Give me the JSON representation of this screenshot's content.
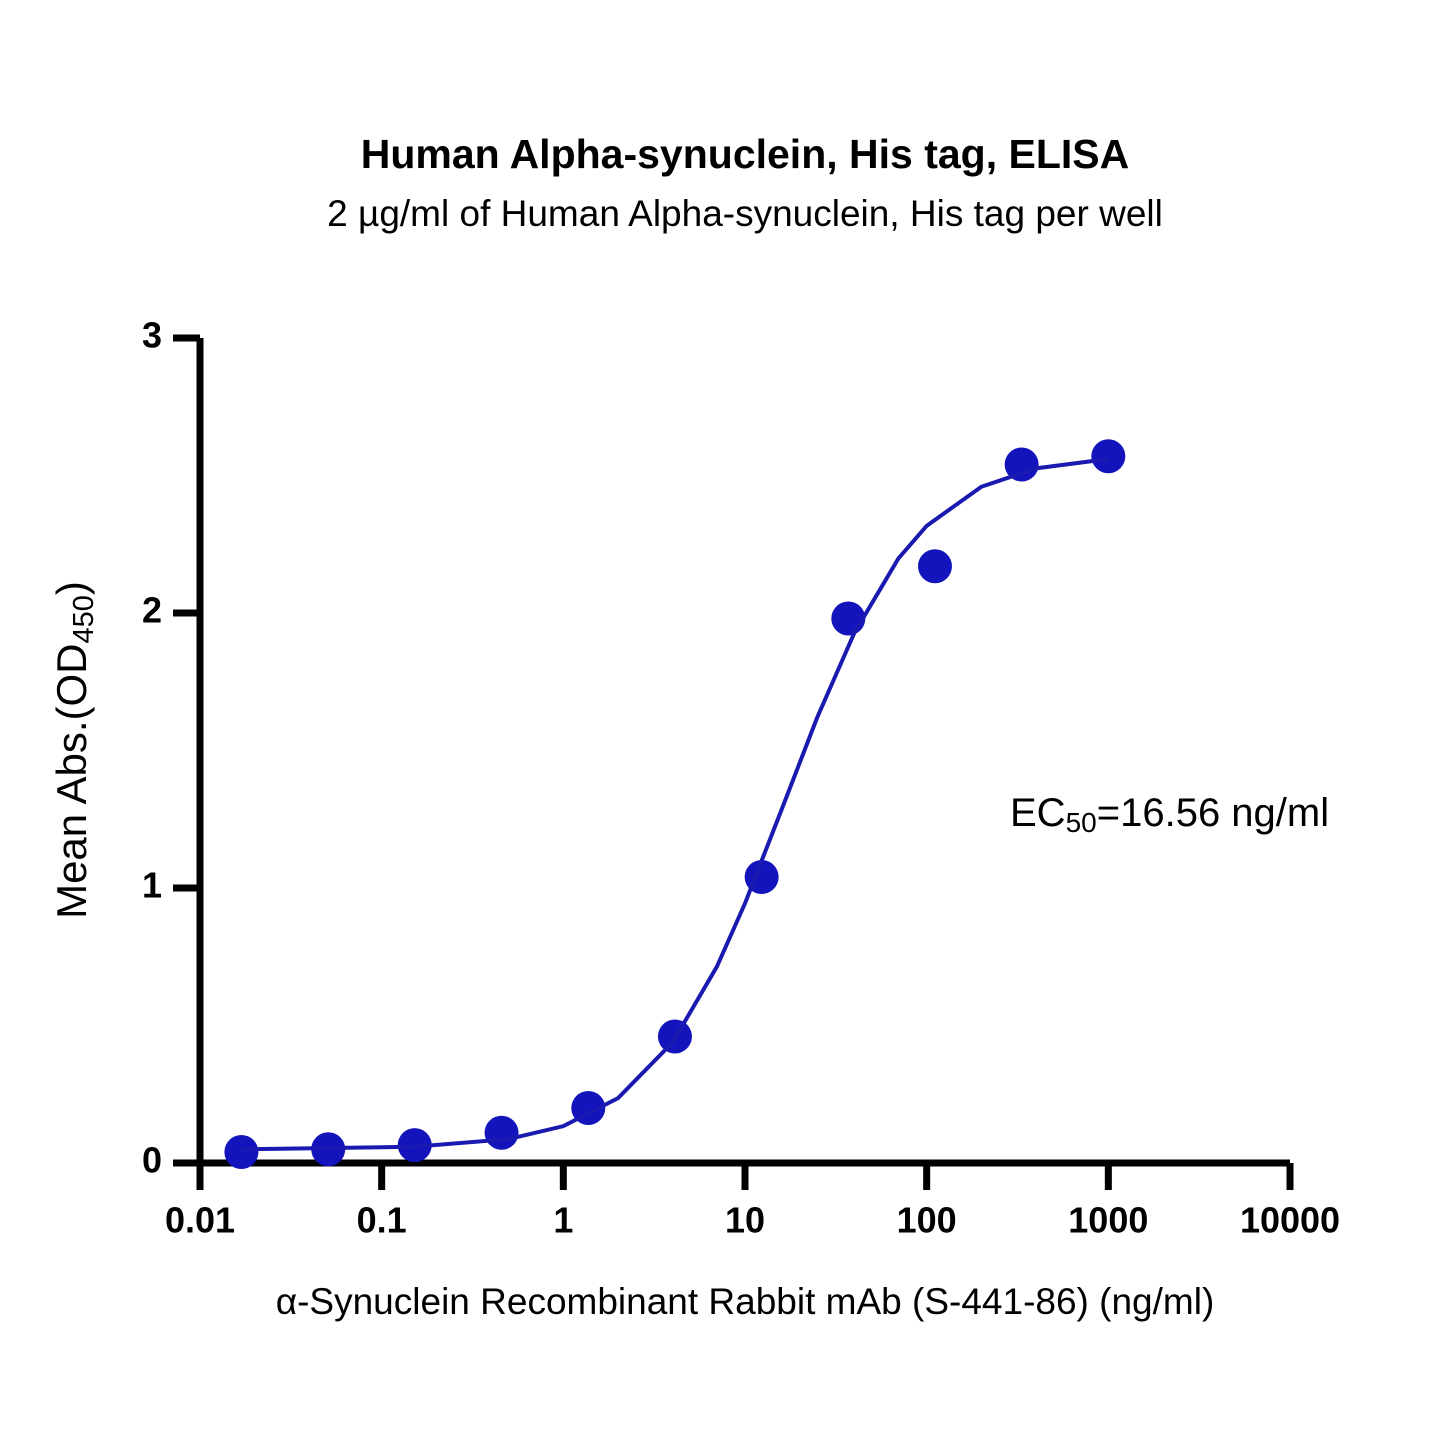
{
  "chart_data": {
    "type": "scatter",
    "title": "Human Alpha-synuclein, His tag, ELISA",
    "subtitle": "2 µg/ml of Human Alpha-synuclein, His tag per well",
    "x_label": "α-Synuclein Recombinant Rabbit mAb (S-441-86) (ng/ml)",
    "y_label": [
      "Mean Abs.(OD",
      "450",
      ")"
    ],
    "annotation": [
      "EC",
      "50",
      "=16.56 ng/ml"
    ],
    "x_scale": "log",
    "xlim": [
      0.01,
      10000
    ],
    "xticks": [
      0.01,
      0.1,
      1,
      10,
      100,
      1000,
      10000
    ],
    "ylim": [
      0,
      3
    ],
    "yticks": [
      0,
      1,
      2,
      3
    ],
    "grid": false,
    "series": [
      {
        "color": "#1414bd",
        "x": [
          0.0169,
          0.0508,
          0.152,
          0.457,
          1.372,
          4.115,
          12.35,
          37.04,
          111.1,
          333.3,
          1000
        ],
        "values": [
          0.04,
          0.05,
          0.065,
          0.11,
          0.2,
          0.46,
          1.04,
          1.98,
          2.17,
          2.54,
          2.57
        ]
      },
      {
        "color": "#1a1ab0",
        "line": true,
        "x": [
          0.0169,
          0.15,
          0.5,
          1,
          2,
          4,
          7,
          10,
          16.56,
          25,
          40,
          70,
          100,
          200,
          400,
          1000
        ],
        "values": [
          0.05,
          0.059,
          0.087,
          0.134,
          0.236,
          0.439,
          0.714,
          0.944,
          1.315,
          1.621,
          1.928,
          2.199,
          2.317,
          2.459,
          2.526,
          2.56
        ]
      }
    ]
  }
}
